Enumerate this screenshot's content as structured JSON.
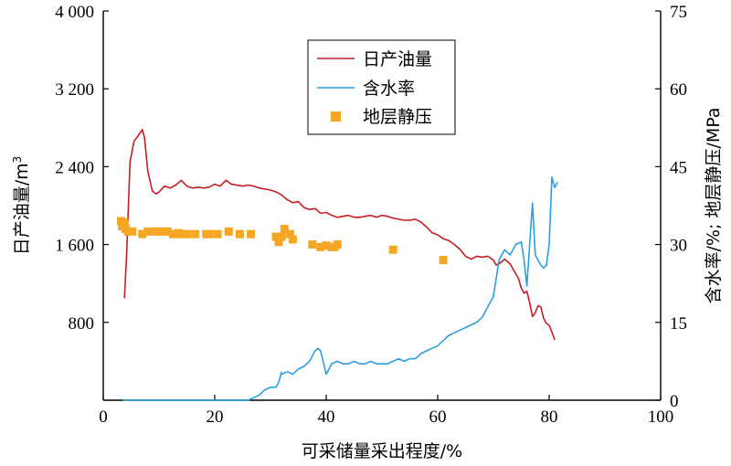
{
  "chart_data": {
    "type": "line",
    "xlabel": "可采储量采出程度/%",
    "ylabel_left_main": "日产油量/m",
    "ylabel_left_sup": "3",
    "ylabel_right": "含水率/%; 地层静压/MPa",
    "xlim": [
      0,
      100
    ],
    "ylim_left": [
      0,
      4000
    ],
    "ylim_right": [
      0,
      75
    ],
    "x_ticks": [
      "0",
      "20",
      "40",
      "60",
      "80",
      "100"
    ],
    "y_left_ticks": [
      "800",
      "1 600",
      "2 400",
      "3 200",
      "4 000"
    ],
    "y_right_ticks": [
      "0",
      "15",
      "30",
      "45",
      "60",
      "75"
    ],
    "grid": false,
    "legend_position": "top-center",
    "colors": {
      "oil": "#c41e24",
      "water": "#2b9fe0",
      "pressure": "#f5a623"
    },
    "series": [
      {
        "name": "日产油量",
        "axis": "left",
        "style": "line",
        "x": [
          3.8,
          4.2,
          4.8,
          5.5,
          6.3,
          7.0,
          7.4,
          8.0,
          8.8,
          9.5,
          10.0,
          11,
          12,
          13,
          14,
          15,
          16,
          17,
          18,
          19,
          20,
          21,
          22,
          23,
          24,
          25,
          26,
          27,
          28,
          29,
          30,
          31,
          32,
          33,
          34,
          35,
          36,
          37,
          38,
          39,
          40,
          41,
          42,
          43,
          44,
          45,
          46,
          47,
          48,
          49,
          50,
          51,
          52,
          53,
          54,
          55,
          56,
          57,
          58,
          59,
          60,
          61,
          62,
          63,
          64,
          65,
          66,
          67,
          68,
          69,
          70,
          70.5,
          71,
          72,
          73,
          74,
          74.5,
          75,
          75.5,
          76,
          76.5,
          77,
          77.5,
          78,
          78.5,
          79,
          79.5,
          80,
          80.5,
          81
        ],
        "y": [
          1050,
          1500,
          2450,
          2660,
          2720,
          2780,
          2700,
          2350,
          2150,
          2120,
          2140,
          2200,
          2180,
          2210,
          2260,
          2200,
          2180,
          2190,
          2180,
          2190,
          2220,
          2200,
          2260,
          2220,
          2210,
          2200,
          2210,
          2200,
          2180,
          2170,
          2160,
          2140,
          2110,
          2060,
          2030,
          2040,
          1980,
          1960,
          1970,
          1920,
          1930,
          1900,
          1880,
          1890,
          1900,
          1880,
          1880,
          1890,
          1900,
          1880,
          1900,
          1890,
          1870,
          1860,
          1850,
          1850,
          1860,
          1830,
          1780,
          1720,
          1700,
          1660,
          1640,
          1600,
          1550,
          1480,
          1450,
          1480,
          1470,
          1480,
          1440,
          1390,
          1400,
          1450,
          1400,
          1300,
          1250,
          1150,
          1100,
          1120,
          1000,
          860,
          900,
          970,
          960,
          840,
          790,
          770,
          700,
          620
        ]
      },
      {
        "name": "含水率",
        "axis": "right",
        "style": "line",
        "segments": [
          {
            "x": [
              3.5,
              26,
              27,
              28,
              29,
              30,
              31,
              31.5,
              32
            ],
            "y": [
              0,
              0,
              0.5,
              1,
              2,
              2.5,
              2.5,
              3.5,
              5.5
            ]
          },
          {
            "x": [
              32,
              33,
              34,
              35,
              36,
              37,
              38,
              38.5,
              39,
              40,
              41,
              42,
              43,
              44,
              45,
              46,
              47,
              48,
              49,
              50,
              51,
              52,
              53,
              54,
              55,
              56,
              57,
              58,
              59,
              60,
              61,
              62,
              63,
              64,
              65,
              66,
              67,
              68,
              69,
              70,
              71,
              72,
              73,
              74,
              75,
              75.5,
              76,
              77,
              77.5,
              78,
              78.5,
              79,
              79.5,
              80,
              80.5,
              81,
              81.5
            ],
            "y": [
              5.0,
              5.5,
              5.0,
              6.0,
              6.5,
              7.5,
              9.5,
              10.0,
              9.5,
              5.0,
              7.0,
              7.5,
              7.0,
              7.0,
              7.5,
              7.0,
              7.0,
              7.5,
              7.0,
              7.0,
              7.0,
              7.5,
              8.0,
              7.5,
              8.0,
              8.0,
              9.0,
              9.5,
              10.0,
              10.5,
              11.5,
              12.5,
              13.0,
              13.5,
              14.0,
              14.5,
              15.0,
              16.0,
              18.0,
              20.0,
              27.0,
              29.0,
              28.0,
              30.0,
              30.5,
              27.0,
              22.0,
              38.0,
              28.0,
              27.0,
              26.0,
              25.5,
              26.0,
              30.0,
              43.0,
              41.0,
              42.0
            ]
          }
        ]
      },
      {
        "name": "地层静压",
        "axis": "right",
        "style": "marker",
        "x": [
          3.2,
          3.4,
          3.6,
          3.8,
          4.0,
          4.5,
          5.2,
          7.0,
          8.0,
          9.5,
          10.5,
          11.5,
          12.5,
          13.5,
          14.0,
          15.0,
          16.5,
          18.5,
          19.0,
          20.5,
          22.5,
          24.5,
          26.5,
          31.0,
          31.5,
          32.0,
          32.5,
          33.5,
          34.0,
          37.5,
          39.0,
          40.0,
          41.0,
          41.5,
          42.0,
          52.0,
          61.0
        ],
        "y": [
          34.5,
          33.5,
          34.2,
          34.0,
          33.0,
          32.5,
          32.5,
          32.0,
          32.5,
          32.5,
          32.5,
          32.5,
          32.0,
          32.2,
          32.0,
          32.0,
          32.0,
          32.0,
          32.0,
          32.0,
          32.5,
          32.0,
          32.0,
          31.5,
          30.5,
          31.5,
          33.0,
          32.0,
          31.0,
          30.0,
          29.5,
          29.8,
          29.5,
          29.5,
          30.0,
          29.0,
          27.0
        ]
      }
    ]
  }
}
